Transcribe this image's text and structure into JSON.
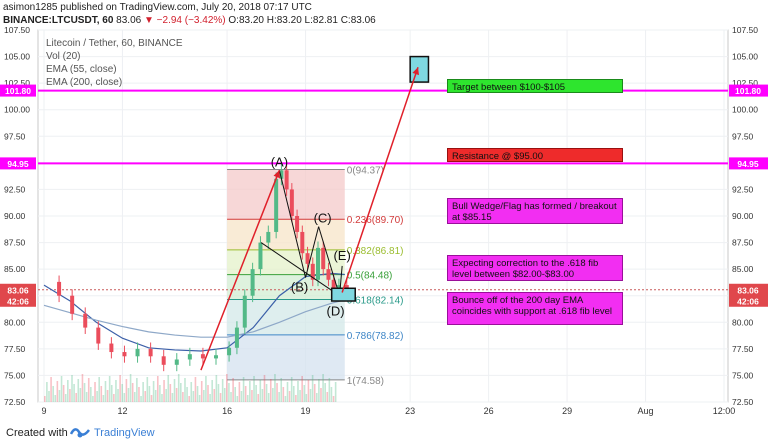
{
  "header": {
    "publish_line": "asimon1285 published on TradingView.com, July 20, 2018 07:17 UTC",
    "symbol": "BINANCE:LTCUSDT, 60",
    "last": "83.06",
    "change": "−2.94 (−3.42%)",
    "ohlc": "O:83.20 H:83.20 L:82.81 C:83.06"
  },
  "legend": {
    "title": "Litecoin / Tether, 60, BINANCE",
    "vol": "Vol (20)",
    "ema55": "EMA (55, close)",
    "ema200": "EMA (200, close)"
  },
  "colors": {
    "candle_up": "#53b987",
    "candle_down": "#eb4d5c",
    "ema55": "#3b5fa8",
    "ema200": "#8ea8c8",
    "resistance_line": "#ff00ff",
    "arrow": "#e0202a",
    "target_box": "#7fd8e0"
  },
  "annotations": {
    "target": "Target between $100-$105",
    "resistance": "Resistance @ $95.00",
    "wedge": "Bull Wedge/Flag has formed / breakout at $85.15",
    "correction": "Expecting correction to the .618 fib level between $82.00-$83.00",
    "bounce": "Bounce off of the 200 day EMA coincides with support at .618 fib level"
  },
  "wave_labels": [
    "(A)",
    "(B)",
    "(C)",
    "(D)",
    "(E)"
  ],
  "price_badges": {
    "left": [
      "101.80",
      "94.95",
      "83.06",
      "42:06"
    ],
    "right": [
      "101.80",
      "94.95",
      "83.06",
      "42:06"
    ]
  },
  "footer": {
    "created": "Created with",
    "brand": "TradingView"
  },
  "chart_data": {
    "type": "line",
    "title": "Litecoin / Tether, 60, BINANCE",
    "ylim": [
      72.5,
      107.5
    ],
    "y_ticks": [
      "107.50",
      "105.00",
      "102.50",
      "100.00",
      "97.50",
      "95.00",
      "92.50",
      "90.00",
      "87.50",
      "85.00",
      "82.50",
      "80.00",
      "77.50",
      "75.00",
      "72.50"
    ],
    "x_ticks": [
      "9",
      "12",
      "16",
      "19",
      "23",
      "26",
      "29",
      "Aug",
      "12:00"
    ],
    "x_tick_days": [
      9,
      12,
      16,
      19,
      23,
      26,
      29,
      32,
      35
    ],
    "xlim": [
      9,
      35
    ],
    "horizontal_levels": [
      {
        "name": "target",
        "value": 101.8
      },
      {
        "name": "resistance",
        "value": 94.95
      },
      {
        "name": "current",
        "value": 83.06
      }
    ],
    "fib_levels": [
      {
        "label": "0(94.37)",
        "value": 94.37
      },
      {
        "label": "0.236(89.70)",
        "value": 89.7
      },
      {
        "label": "0.382(86.81)",
        "value": 86.81
      },
      {
        "label": "0.5(84.48)",
        "value": 84.48
      },
      {
        "label": "0.618(82.14)",
        "value": 82.14
      },
      {
        "label": "0.786(78.82)",
        "value": 78.82
      },
      {
        "label": "1(74.58)",
        "value": 74.58
      }
    ],
    "fib_range": {
      "start_day": 16.0,
      "end_day": 20.5
    },
    "series": [
      {
        "name": "price",
        "x": [
          9.0,
          9.5,
          10.0,
          10.5,
          11.0,
          11.5,
          12.0,
          12.5,
          13.0,
          13.5,
          14.0,
          14.5,
          15.0,
          15.5,
          16.0,
          16.3,
          16.6,
          16.9,
          17.2,
          17.5,
          17.8,
          18.0,
          18.2,
          18.4,
          18.6,
          18.8,
          19.0,
          19.2,
          19.4,
          19.6,
          19.8,
          20.0,
          20.2,
          20.5
        ],
        "y": [
          83.8,
          82.5,
          80.8,
          79.5,
          78.0,
          77.2,
          76.8,
          77.5,
          76.8,
          76.0,
          76.5,
          77.0,
          76.6,
          76.9,
          77.6,
          79.5,
          82.5,
          85.0,
          87.5,
          88.5,
          93.5,
          94.3,
          92.5,
          90.0,
          88.5,
          86.5,
          85.5,
          84.0,
          87.0,
          85.0,
          84.0,
          82.8,
          83.5,
          83.06
        ]
      },
      {
        "name": "EMA 55",
        "x": [
          9.0,
          10.0,
          11.0,
          12.0,
          13.0,
          14.0,
          15.0,
          16.0,
          17.0,
          18.0,
          19.0,
          20.0,
          20.5
        ],
        "y": [
          83.5,
          82.0,
          80.0,
          78.5,
          77.6,
          77.4,
          77.3,
          77.6,
          79.5,
          82.5,
          84.3,
          84.6,
          84.5
        ]
      },
      {
        "name": "EMA 200",
        "x": [
          9.0,
          10.0,
          11.0,
          12.0,
          13.0,
          14.0,
          15.0,
          16.0,
          17.0,
          18.0,
          19.0,
          20.0,
          20.5
        ],
        "y": [
          81.6,
          80.9,
          80.2,
          79.6,
          79.1,
          78.8,
          78.6,
          78.6,
          79.1,
          80.0,
          81.0,
          81.8,
          82.1
        ]
      }
    ],
    "wave_points": [
      {
        "label": "(A)",
        "x": 18.0,
        "y": 94.3
      },
      {
        "label": "(B)",
        "x": 19.0,
        "y": 84.2
      },
      {
        "label": "(C)",
        "x": 19.5,
        "y": 89.0
      },
      {
        "label": "(D)",
        "x": 20.3,
        "y": 82.5
      },
      {
        "label": "(E)",
        "x": 20.4,
        "y": 85.3
      }
    ],
    "projection_arrows": [
      {
        "from": [
          15.0,
          75.5
        ],
        "to": [
          18.0,
          94.3
        ]
      },
      {
        "from": [
          20.4,
          82.8
        ],
        "to": [
          23.3,
          104.0
        ]
      }
    ],
    "target_box": {
      "x": [
        23.0,
        23.7
      ],
      "y": [
        102.6,
        105.0
      ]
    },
    "correction_box": {
      "x": [
        20.0,
        20.9
      ],
      "y": [
        82.0,
        83.2
      ]
    }
  }
}
